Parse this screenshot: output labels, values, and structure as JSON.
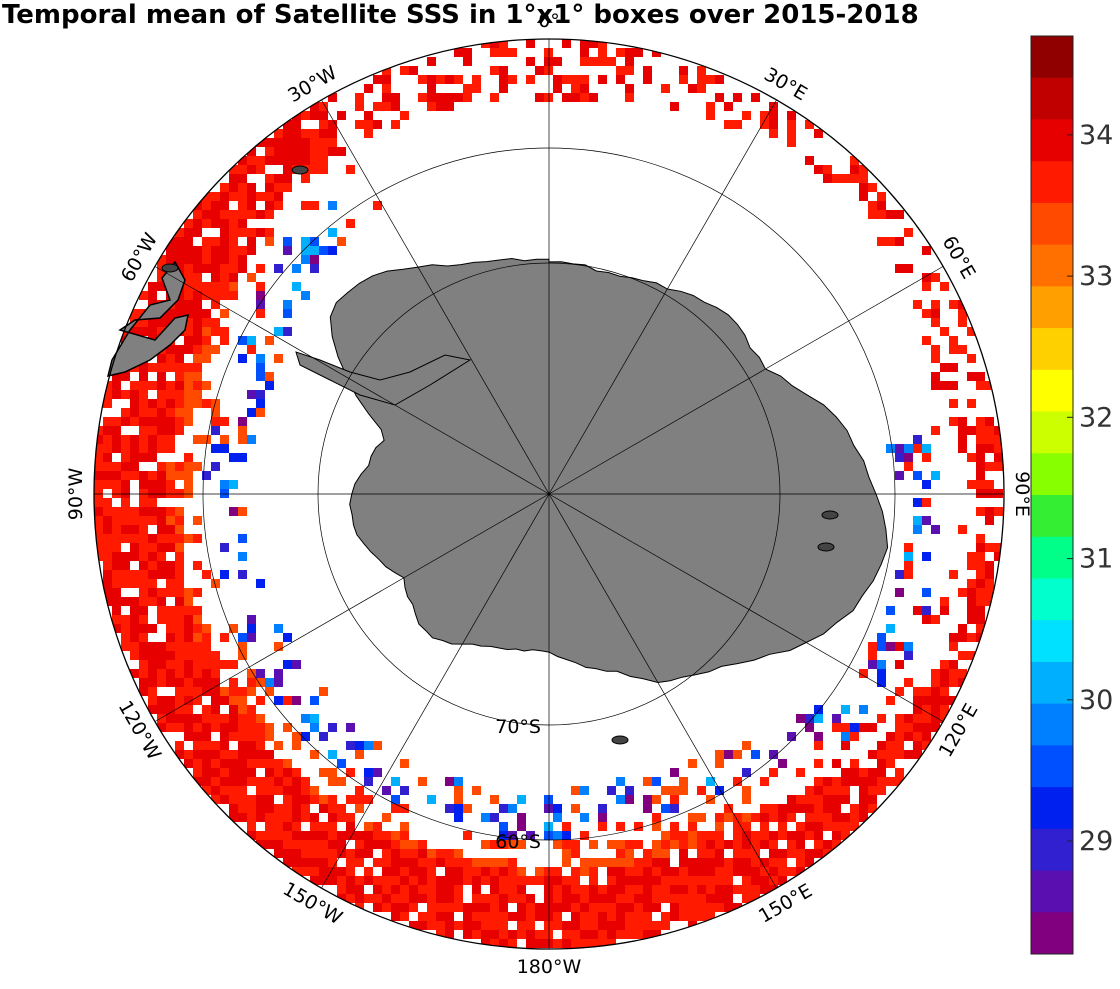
{
  "title": "Temporal mean of Satellite SSS in 1°x1° boxes over 2015-2018",
  "projection": "south-polar-stereographic",
  "map_data": {
    "variable": "Satellite SSS",
    "period": "2015-2018",
    "grid": "1°x1°",
    "background_color": "#ffffff",
    "land_color": "#808080",
    "colormap": [
      "#800080",
      "#5a10b0",
      "#3020d0",
      "#0020f0",
      "#0050ff",
      "#0080ff",
      "#00b0ff",
      "#00e0ff",
      "#00ffcc",
      "#00ff88",
      "#33ee33",
      "#88ff00",
      "#ccff00",
      "#ffff00",
      "#ffd000",
      "#ffa000",
      "#ff7000",
      "#ff4a00",
      "#ff1a00",
      "#e60000",
      "#c00000",
      "#900000"
    ],
    "colorbar": {
      "min": 28.2,
      "max": 34.7,
      "ticks": [
        "29",
        "30",
        "31",
        "32",
        "33",
        "34"
      ]
    }
  },
  "graticule": {
    "parallels": [
      "60°S",
      "70°S"
    ],
    "meridian_labels": [
      {
        "lon": 0,
        "text": "0°"
      },
      {
        "lon": 30,
        "text": "30°E"
      },
      {
        "lon": 60,
        "text": "60°E"
      },
      {
        "lon": 90,
        "text": "90°E"
      },
      {
        "lon": 120,
        "text": "120°E"
      },
      {
        "lon": 150,
        "text": "150°E"
      },
      {
        "lon": 180,
        "text": "180°W"
      },
      {
        "lon": -150,
        "text": "150°W"
      },
      {
        "lon": -120,
        "text": "120°W"
      },
      {
        "lon": -90,
        "text": "90°W"
      },
      {
        "lon": -60,
        "text": "60°W"
      },
      {
        "lon": -30,
        "text": "30°W"
      }
    ]
  }
}
